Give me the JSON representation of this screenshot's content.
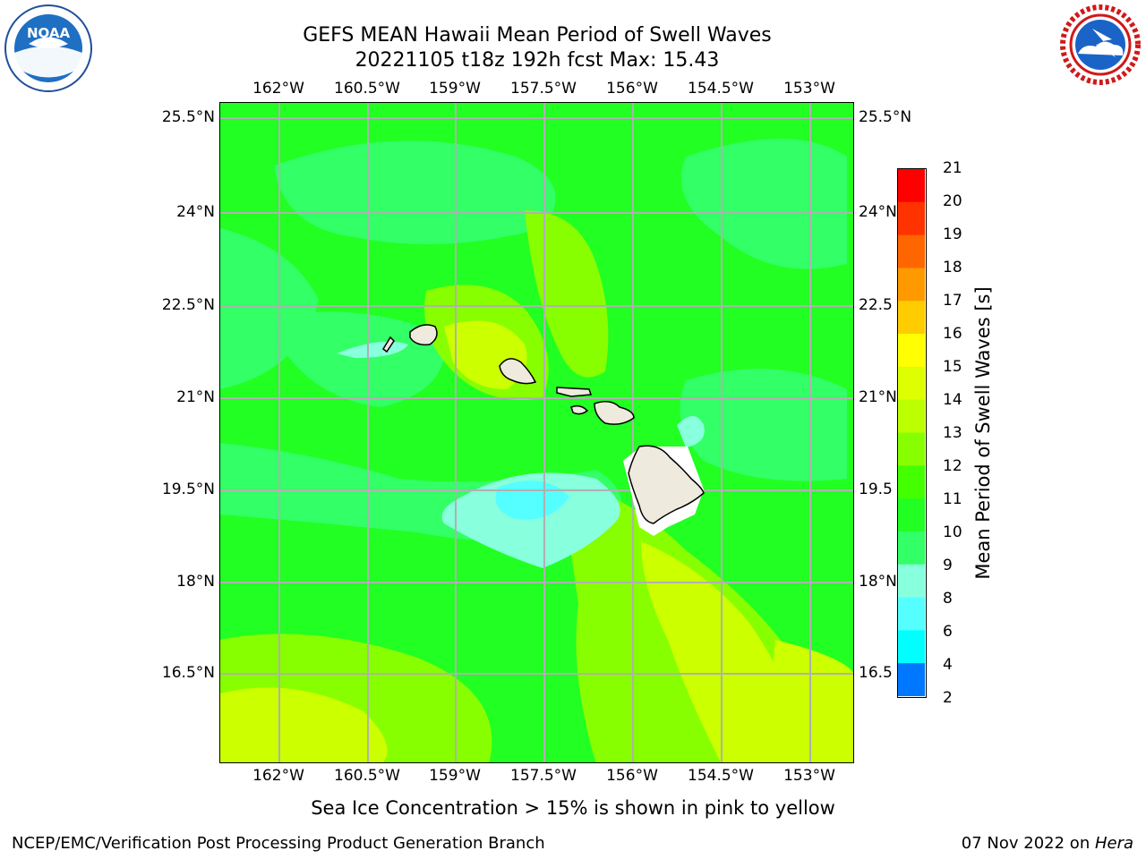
{
  "title_line1": "GEFS MEAN Hawaii Mean Period of Swell Waves",
  "title_line2": "20221105 t18z 192h fcst   Max: 15.43",
  "lon_ticks": [
    "162°W",
    "160.5°W",
    "159°W",
    "157.5°W",
    "156°W",
    "154.5°W",
    "153°W"
  ],
  "lat_ticks": [
    "25.5°N",
    "24°N",
    "22.5°N",
    "21°N",
    "19.5°N",
    "18°N",
    "16.5°N"
  ],
  "lat_ticks_right": [
    "25.5°N",
    "24°N",
    "22.5",
    "21°N",
    "19.5",
    "18°N",
    "16.5"
  ],
  "colorbar": {
    "label": "Mean Period of Swell Waves [s]",
    "ticks": [
      "21",
      "20",
      "19",
      "18",
      "17",
      "16",
      "15",
      "14",
      "13",
      "12",
      "11",
      "10",
      "9",
      "8",
      "6",
      "4",
      "2"
    ],
    "colors": [
      "#ff0000",
      "#ff3300",
      "#ff6600",
      "#ff9900",
      "#ffcc00",
      "#ffff00",
      "#ddff00",
      "#bbff00",
      "#88ff00",
      "#44ff00",
      "#22ff22",
      "#33ff66",
      "#88ffdd",
      "#55ffff",
      "#00ffff",
      "#0077ff",
      "#0000ff"
    ]
  },
  "subtitle": "Sea Ice Concentration > 15% is shown in pink to yellow",
  "footer_left": "NCEP/EMC/Verification Post Processing Product Generation Branch",
  "footer_right_prefix": "07 Nov 2022 on ",
  "footer_right_host": "Hera",
  "logos": {
    "left": "noaa-logo",
    "right": "nws-logo",
    "left_text": "NOAA"
  }
}
